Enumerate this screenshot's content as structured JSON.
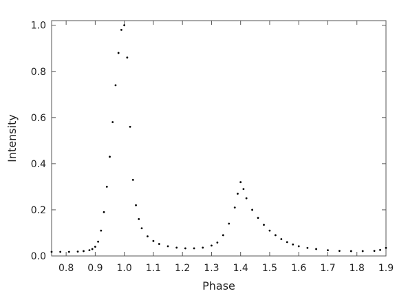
{
  "chart_data": {
    "type": "scatter",
    "xlabel": "Phase",
    "ylabel": "Intensity",
    "xlim": [
      0.75,
      1.9
    ],
    "ylim": [
      0.0,
      1.02
    ],
    "x_ticks": [
      0.8,
      0.9,
      1.0,
      1.1,
      1.2,
      1.3,
      1.4,
      1.5,
      1.6,
      1.7,
      1.8,
      1.9
    ],
    "x_tick_labels": [
      "0.8",
      "0.9",
      "1.0",
      "1.1",
      "1.2",
      "1.3",
      "1.4",
      "1.5",
      "1.6",
      "1.7",
      "1.8",
      "1.9"
    ],
    "y_ticks": [
      0.0,
      0.2,
      0.4,
      0.6,
      0.8,
      1.0
    ],
    "y_tick_labels": [
      "0.0",
      "0.2",
      "0.4",
      "0.6",
      "0.8",
      "1.0"
    ],
    "grid": false,
    "marker_color": "#000000",
    "series": [
      {
        "x": [
          0.75,
          0.78,
          0.81,
          0.84,
          0.86,
          0.88,
          0.89,
          0.9,
          0.91,
          0.92,
          0.93,
          0.94,
          0.95,
          0.96,
          0.97,
          0.98,
          0.99,
          1.0,
          1.01,
          1.02,
          1.03,
          1.04,
          1.05,
          1.06,
          1.08,
          1.1,
          1.12,
          1.15,
          1.18,
          1.21,
          1.24,
          1.27,
          1.3,
          1.32,
          1.34,
          1.36,
          1.38,
          1.39,
          1.4,
          1.41,
          1.42,
          1.44,
          1.46,
          1.48,
          1.5,
          1.52,
          1.54,
          1.56,
          1.58,
          1.6,
          1.63,
          1.66,
          1.7,
          1.74,
          1.78,
          1.82,
          1.86,
          1.88,
          1.9
        ],
        "y": [
          0.018,
          0.018,
          0.018,
          0.019,
          0.021,
          0.025,
          0.03,
          0.04,
          0.062,
          0.11,
          0.19,
          0.3,
          0.43,
          0.58,
          0.74,
          0.88,
          0.98,
          1.0,
          0.86,
          0.56,
          0.33,
          0.22,
          0.16,
          0.12,
          0.085,
          0.065,
          0.052,
          0.042,
          0.036,
          0.033,
          0.033,
          0.036,
          0.045,
          0.058,
          0.09,
          0.14,
          0.21,
          0.27,
          0.32,
          0.29,
          0.25,
          0.2,
          0.165,
          0.135,
          0.11,
          0.09,
          0.073,
          0.06,
          0.05,
          0.042,
          0.035,
          0.03,
          0.025,
          0.022,
          0.021,
          0.021,
          0.022,
          0.026,
          0.035
        ]
      }
    ]
  }
}
